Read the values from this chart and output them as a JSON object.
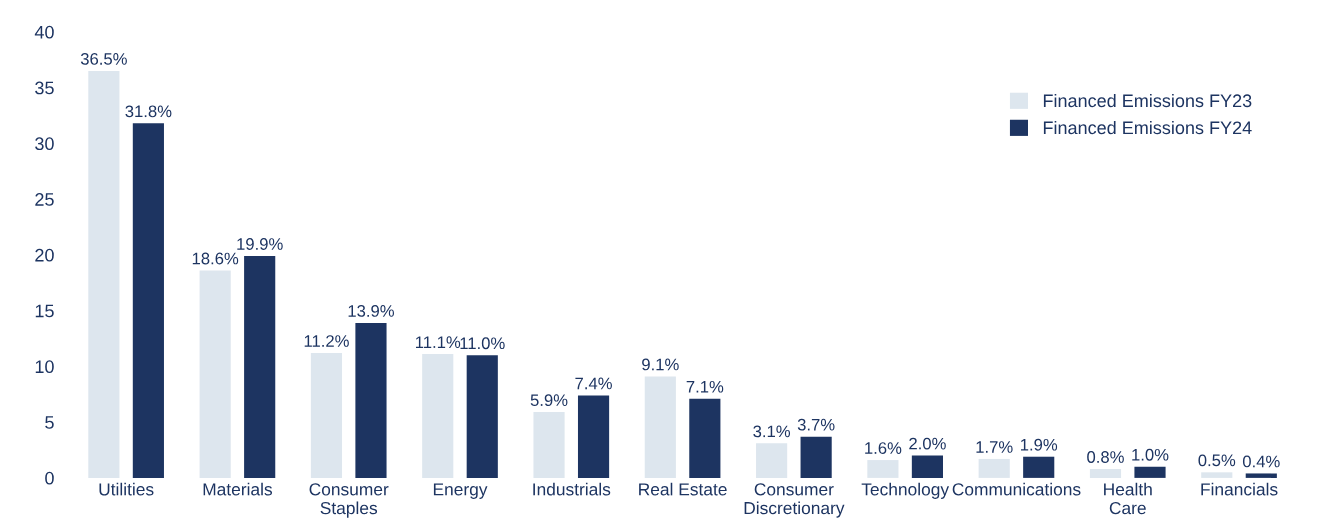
{
  "chart_data": {
    "type": "bar",
    "categories": [
      "Utilities",
      "Materials",
      "Consumer\nStaples",
      "Energy",
      "Industrials",
      "Real Estate",
      "Consumer\nDiscretionary",
      "Technology",
      "Communications",
      "Health\nCare",
      "Financials"
    ],
    "series": [
      {
        "name": "Financed Emissions FY23",
        "color": "#dde6ee",
        "values": [
          36.5,
          18.6,
          11.2,
          11.1,
          5.9,
          9.1,
          3.1,
          1.6,
          1.7,
          0.8,
          0.5
        ],
        "value_labels": [
          "36.5%",
          "18.6%",
          "11.2%",
          "11.1%",
          "5.9%",
          "9.1%",
          "3.1%",
          "1.6%",
          "1.7%",
          "0.8%",
          "0.5%"
        ]
      },
      {
        "name": "Financed Emissions FY24",
        "color": "#1d3461",
        "values": [
          31.8,
          19.9,
          13.9,
          11.0,
          7.4,
          7.1,
          3.7,
          2.0,
          1.9,
          1.0,
          0.4
        ],
        "value_labels": [
          "31.8%",
          "19.9%",
          "13.9%",
          "11.0%",
          "7.4%",
          "7.1%",
          "3.7%",
          "2.0%",
          "1.9%",
          "1.0%",
          "0.4%"
        ]
      }
    ],
    "ylim": [
      0,
      40
    ],
    "yticks": [
      0,
      5,
      10,
      15,
      20,
      25,
      30,
      35,
      40
    ],
    "grid": false,
    "legend": "top right"
  }
}
